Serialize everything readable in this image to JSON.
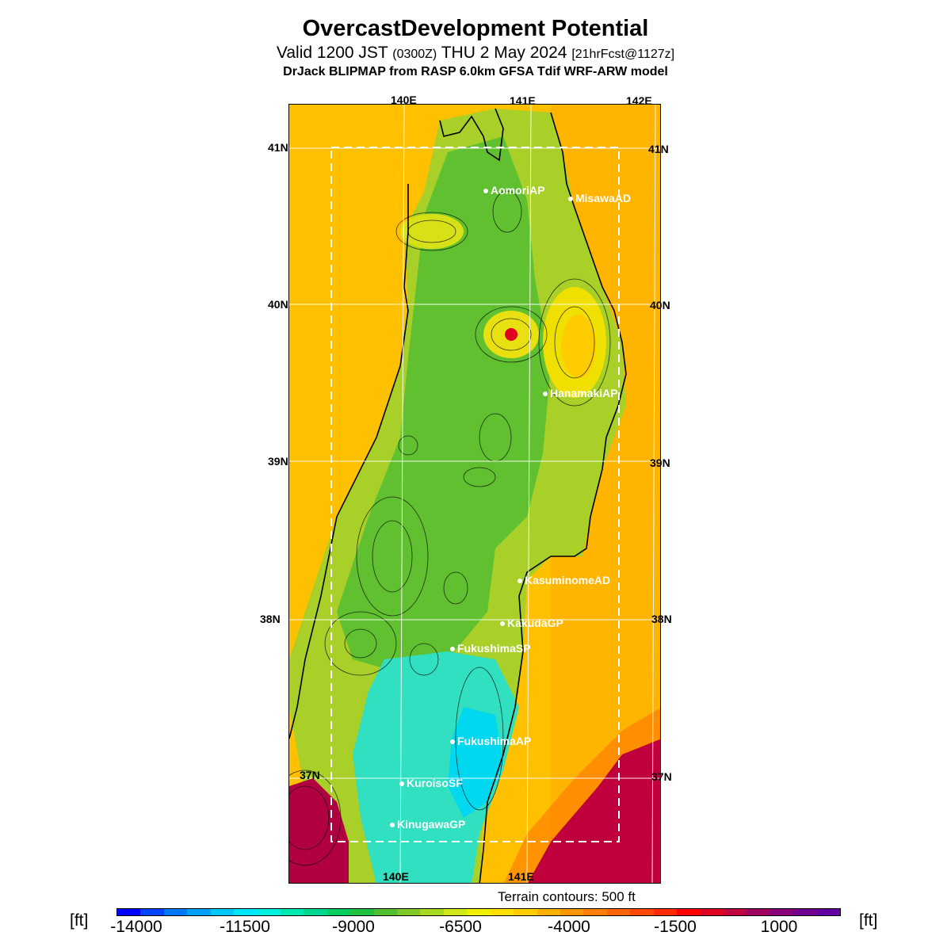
{
  "title": "OvercastDevelopment Potential",
  "subtitle": {
    "valid": "Valid 1200 JST",
    "utc": "(0300Z)",
    "date": "THU 2 May 2024",
    "forecast": "[21hrFcst@1127z]"
  },
  "model_line": "DrJack BLIPMAP from RASP 6.0km GFSA Tdif WRF-ARW model",
  "map": {
    "lon_labels_top": [
      "140E",
      "141E",
      "142E"
    ],
    "lon_labels_bottom": [
      "140E",
      "141E"
    ],
    "lat_labels": [
      "41N",
      "40N",
      "39N",
      "38N",
      "37N"
    ],
    "stations": [
      {
        "name": "AomoriAP"
      },
      {
        "name": "MisawaAD"
      },
      {
        "name": "HanamakiAP"
      },
      {
        "name": "KasuminomeAD"
      },
      {
        "name": "KakudaGP"
      },
      {
        "name": "FukushimaSP"
      },
      {
        "name": "FukushimaAP"
      },
      {
        "name": "KuroisoSF"
      },
      {
        "name": "KinugawaGP"
      }
    ]
  },
  "terrain_note": "Terrain contours: 500 ft",
  "colorbar": {
    "unit": "[ft]",
    "tick_labels": [
      "-14000",
      "-11500",
      "-9000",
      "-6500",
      "-4000",
      "-1500",
      "1000"
    ],
    "colors": [
      "#0000ff",
      "#0044ff",
      "#0077ff",
      "#00a0ff",
      "#00c8ff",
      "#00e6ff",
      "#00f0e0",
      "#00e8b0",
      "#00d890",
      "#00cc60",
      "#20c040",
      "#50c030",
      "#80c828",
      "#a8d820",
      "#d0e818",
      "#f0f000",
      "#ffe000",
      "#ffcc00",
      "#ffb000",
      "#ff9800",
      "#ff8000",
      "#ff6400",
      "#ff4800",
      "#ff2a00",
      "#ff0000",
      "#e00020",
      "#c00040",
      "#a00060",
      "#88007a",
      "#700090",
      "#6000a0"
    ]
  }
}
